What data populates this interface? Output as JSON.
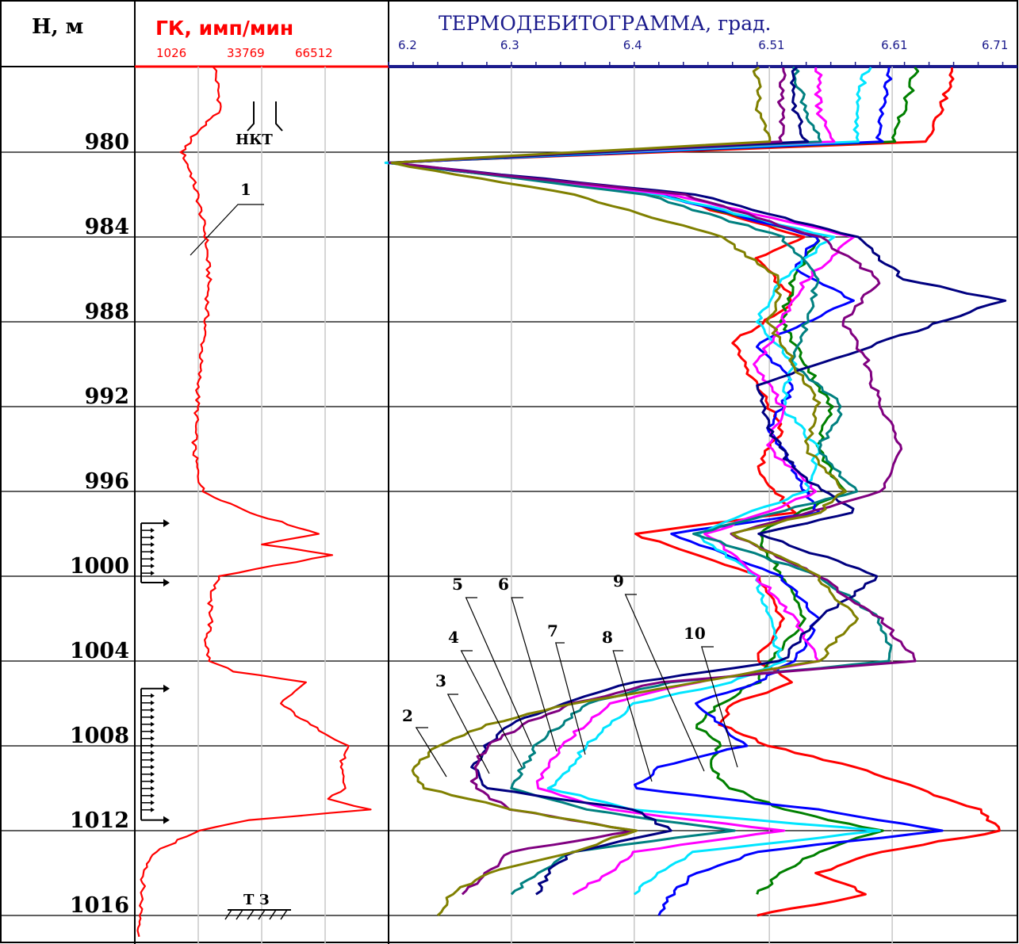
{
  "header": {
    "depth_title": "Н, м",
    "gk_title": "ГК, имп/мин",
    "temp_title": "ТЕРМОДЕБИТОГРАММА, град."
  },
  "colors": {
    "gk": "#ff0000",
    "temp_axis": "#1a1a8c",
    "grid": "#c8c8c8",
    "lines": [
      "#ff0000",
      "#008000",
      "#0000ff",
      "#00e5ff",
      "#000080",
      "#008080",
      "#ff00ff",
      "#800080",
      "#808000"
    ]
  },
  "annotations": {
    "nkt": "НКТ",
    "tz": "Т З",
    "gk_curve_label": "1"
  },
  "chart_data": [
    {
      "type": "line",
      "name": "gk",
      "title": "ГК, имп/мин",
      "xlim": [
        1026,
        86512
      ],
      "x_ticks": [
        "1026",
        "33769",
        "66512"
      ],
      "depth": [
        976,
        978,
        979,
        980,
        981,
        982,
        984,
        986,
        988,
        990,
        992,
        994,
        995,
        996,
        997,
        998,
        998.5,
        999,
        999.5,
        1000,
        1001,
        1002,
        1003,
        1004,
        1004.5,
        1005,
        1006,
        1007,
        1008,
        1009,
        1010,
        1010.5,
        1011,
        1011.5,
        1012,
        1013,
        1014,
        1016,
        1017
      ],
      "values": [
        28000,
        30000,
        22000,
        17000,
        20000,
        22000,
        25000,
        26000,
        25000,
        23000,
        22000,
        21000,
        22000,
        24000,
        40000,
        63000,
        44000,
        68000,
        48000,
        30000,
        26000,
        27000,
        25000,
        26000,
        35000,
        58000,
        50000,
        60000,
        73000,
        70000,
        72000,
        66000,
        80000,
        40000,
        22000,
        8000,
        4000,
        3000,
        2500
      ]
    },
    {
      "type": "line",
      "name": "thermodebitogram",
      "title": "ТЕРМОДЕБИТОГРАММА, град.",
      "xlim": [
        6.2,
        6.71
      ],
      "x_ticks": [
        "6.2",
        "6.3",
        "6.4",
        "6.51",
        "6.61",
        "6.71"
      ],
      "series": [
        {
          "label": "10",
          "color": "#ff0000",
          "depth": [
            976,
            978,
            979.5,
            980.5,
            982,
            984,
            985,
            987,
            989,
            991,
            993,
            995,
            997,
            998,
            1000,
            1002,
            1004,
            1005,
            1006,
            1007,
            1008,
            1009,
            1010,
            1011,
            1012,
            1013,
            1014,
            1015,
            1016
          ],
          "values": [
            6.66,
            6.65,
            6.64,
            6.2,
            6.42,
            6.54,
            6.5,
            6.53,
            6.48,
            6.5,
            6.52,
            6.5,
            6.53,
            6.4,
            6.5,
            6.52,
            6.5,
            6.53,
            6.48,
            6.47,
            6.51,
            6.58,
            6.63,
            6.68,
            6.7,
            6.6,
            6.55,
            6.59,
            6.5
          ]
        },
        {
          "label": "9",
          "color": "#008000",
          "depth": [
            976,
            978,
            979.5,
            980.5,
            982,
            984,
            986,
            988,
            990,
            992,
            994,
            996,
            998,
            1000,
            1002,
            1004,
            1005,
            1006,
            1007,
            1008,
            1009,
            1010,
            1011,
            1012,
            1013,
            1014,
            1015
          ],
          "values": [
            6.63,
            6.62,
            6.61,
            6.2,
            6.42,
            6.55,
            6.53,
            6.52,
            6.54,
            6.56,
            6.55,
            6.57,
            6.5,
            6.52,
            6.54,
            6.51,
            6.5,
            6.47,
            6.45,
            6.47,
            6.46,
            6.48,
            6.52,
            6.6,
            6.55,
            6.52,
            6.5
          ]
        },
        {
          "label": "8",
          "color": "#0000ff",
          "depth": [
            976,
            978,
            979.5,
            980.5,
            982,
            984,
            985.5,
            987,
            989,
            991,
            993,
            995,
            997,
            998,
            1000,
            1002,
            1004,
            1005,
            1006,
            1007,
            1008,
            1009,
            1010,
            1011,
            1012,
            1013,
            1014,
            1015,
            1016
          ],
          "values": [
            6.61,
            6.6,
            6.6,
            6.2,
            6.42,
            6.55,
            6.53,
            6.58,
            6.5,
            6.53,
            6.51,
            6.53,
            6.55,
            6.43,
            6.52,
            6.55,
            6.53,
            6.5,
            6.45,
            6.47,
            6.49,
            6.42,
            6.4,
            6.55,
            6.65,
            6.5,
            6.45,
            6.43,
            6.42
          ]
        },
        {
          "label": "7",
          "color": "#00e5ff",
          "depth": [
            976,
            978,
            979.5,
            980.5,
            982,
            984,
            986,
            988,
            990,
            992,
            994,
            996,
            998,
            1000,
            1002,
            1004,
            1005,
            1006,
            1007,
            1008,
            1009,
            1010,
            1011,
            1012,
            1013,
            1014,
            1015
          ],
          "values": [
            6.59,
            6.58,
            6.58,
            6.2,
            6.42,
            6.56,
            6.52,
            6.5,
            6.53,
            6.52,
            6.55,
            6.54,
            6.45,
            6.5,
            6.51,
            6.52,
            6.48,
            6.4,
            6.38,
            6.36,
            6.35,
            6.33,
            6.4,
            6.6,
            6.45,
            6.42,
            6.4
          ]
        },
        {
          "label": "6",
          "color": "#ff00ff",
          "depth": [
            976,
            978,
            979.5,
            980.5,
            982,
            984,
            986,
            988,
            990,
            992,
            994,
            996,
            998,
            1000,
            1002,
            1004,
            1005,
            1006,
            1007,
            1008,
            1009,
            1010,
            1011,
            1012,
            1013,
            1014,
            1015
          ],
          "values": [
            6.55,
            6.55,
            6.56,
            6.2,
            6.43,
            6.58,
            6.54,
            6.52,
            6.5,
            6.52,
            6.51,
            6.55,
            6.46,
            6.5,
            6.53,
            6.55,
            6.45,
            6.38,
            6.36,
            6.34,
            6.33,
            6.32,
            6.38,
            6.52,
            6.4,
            6.38,
            6.35
          ]
        },
        {
          "label": "5",
          "color": "#008080",
          "depth": [
            976,
            978,
            979.5,
            980.5,
            982,
            984,
            986,
            988,
            990,
            992,
            994,
            996,
            998,
            1000,
            1002,
            1004,
            1005,
            1006,
            1007,
            1008,
            1009,
            1010,
            1011,
            1012,
            1013,
            1014,
            1015
          ],
          "values": [
            6.53,
            6.54,
            6.55,
            6.2,
            6.41,
            6.52,
            6.55,
            6.54,
            6.53,
            6.57,
            6.55,
            6.58,
            6.45,
            6.55,
            6.6,
            6.61,
            6.43,
            6.36,
            6.34,
            6.32,
            6.31,
            6.3,
            6.36,
            6.48,
            6.35,
            6.32,
            6.3
          ]
        },
        {
          "label": "4",
          "color": "#000080",
          "depth": [
            976,
            978,
            979.5,
            980.5,
            982,
            984,
            986,
            987,
            989,
            991,
            993,
            995,
            997,
            998,
            1000,
            1002,
            1004,
            1005,
            1006,
            1007,
            1008,
            1009,
            1010,
            1011,
            1012,
            1013,
            1014,
            1015
          ],
          "values": [
            6.53,
            6.53,
            6.54,
            6.2,
            6.45,
            6.58,
            6.62,
            6.7,
            6.6,
            6.5,
            6.51,
            6.53,
            6.58,
            6.5,
            6.6,
            6.55,
            6.52,
            6.4,
            6.34,
            6.3,
            6.28,
            6.27,
            6.28,
            6.4,
            6.43,
            6.35,
            6.33,
            6.32
          ]
        },
        {
          "label": "3",
          "color": "#800080",
          "depth": [
            976,
            978,
            979.5,
            980.5,
            982,
            984,
            986,
            988,
            990,
            992,
            994,
            996,
            998,
            1000,
            1002,
            1004,
            1005,
            1006,
            1007,
            1008,
            1009,
            1010,
            1011,
            1012,
            1013,
            1014,
            1015
          ],
          "values": [
            6.52,
            6.52,
            6.52,
            6.2,
            6.44,
            6.55,
            6.6,
            6.57,
            6.59,
            6.6,
            6.62,
            6.6,
            6.48,
            6.55,
            6.6,
            6.63,
            6.42,
            6.35,
            6.31,
            6.28,
            6.27,
            6.27,
            6.3,
            6.4,
            6.3,
            6.28,
            6.26
          ]
        },
        {
          "label": "2",
          "color": "#808000",
          "depth": [
            976,
            978,
            979.5,
            980.5,
            982,
            984,
            986,
            988,
            990,
            992,
            994,
            996,
            997,
            998,
            1000,
            1002,
            1004,
            1005,
            1006,
            1007,
            1008,
            1009,
            1010,
            1011,
            1012,
            1013,
            1014,
            1015,
            1016
          ],
          "values": [
            6.5,
            6.5,
            6.51,
            6.2,
            6.35,
            6.47,
            6.52,
            6.51,
            6.53,
            6.55,
            6.54,
            6.57,
            6.55,
            6.48,
            6.55,
            6.58,
            6.55,
            6.45,
            6.35,
            6.28,
            6.24,
            6.22,
            6.23,
            6.3,
            6.4,
            6.35,
            6.28,
            6.25,
            6.24
          ]
        }
      ]
    }
  ]
}
